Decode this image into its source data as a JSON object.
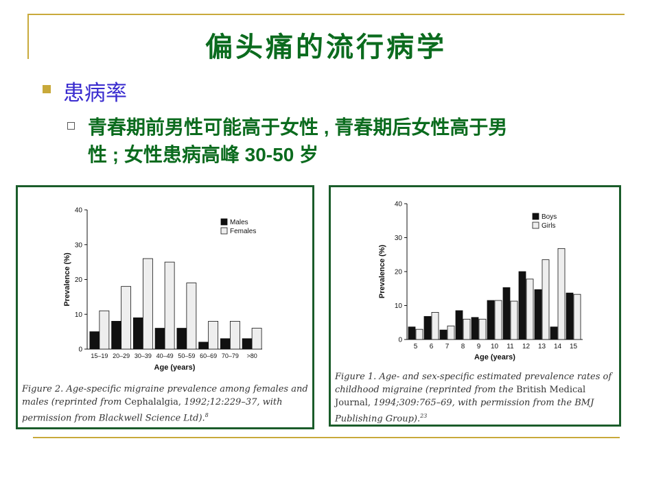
{
  "slide": {
    "title": "偏头痛的流行病学",
    "bullet1": "患病率",
    "bullet2_line1": "青春期前男性可能高于女性 , 青春期后女性高于男",
    "bullet2_line2": "性 ; 女性患病高峰 30-50 岁"
  },
  "colors": {
    "title": "#0b6b1e",
    "bullet1": "#3a2ccf",
    "rule": "#c8a93a",
    "panel_border": "#1a5c2a"
  },
  "chart_data": [
    {
      "type": "bar",
      "categories": [
        "15–19",
        "20–29",
        "30–39",
        "40–49",
        "50–59",
        "60–69",
        "70–79",
        ">80"
      ],
      "series": [
        {
          "name": "Males",
          "values": [
            5,
            8,
            9,
            6,
            6,
            2,
            3,
            3
          ],
          "color": "#111111"
        },
        {
          "name": "Females",
          "values": [
            11,
            18,
            26,
            25,
            19,
            8,
            8,
            6
          ],
          "color": "#eeeeee"
        }
      ],
      "xlabel": "Age (years)",
      "ylabel": "Prevalence (%)",
      "ylim": [
        0,
        40
      ],
      "yticks": [
        "0",
        "10",
        "20",
        "30",
        "40"
      ],
      "legend": "top-right",
      "caption_parts": [
        {
          "t": "Figure 2. Age-specific migraine prevalence among females and males (reprinted from ",
          "s": "i"
        },
        {
          "t": "Cephalalgia, ",
          "s": "n"
        },
        {
          "t": "1992;12:229–37, with permission from Blackwell Science Ltd).",
          "s": "i"
        },
        {
          "t": "8",
          "s": "sup"
        }
      ]
    },
    {
      "type": "bar",
      "categories": [
        "5",
        "6",
        "7",
        "8",
        "9",
        "10",
        "11",
        "12",
        "13",
        "14",
        "15"
      ],
      "series": [
        {
          "name": "Boys",
          "values": [
            3.7,
            6.8,
            2.8,
            8.5,
            6.5,
            11.5,
            15.3,
            20,
            14.7,
            3.7,
            13.7
          ],
          "color": "#111111"
        },
        {
          "name": "Girls",
          "values": [
            3,
            8,
            4,
            6,
            6,
            11.5,
            11.3,
            17.8,
            23.5,
            26.8,
            13.3
          ],
          "color": "#eeeeee"
        }
      ],
      "xlabel": "Age (years)",
      "ylabel": "Prevalence (%)",
      "ylim": [
        0,
        40
      ],
      "yticks": [
        "0",
        "10",
        "20",
        "30",
        "40"
      ],
      "legend": "top-right",
      "caption_parts": [
        {
          "t": "Figure 1. Age- and sex-specific estimated prevalence rates of childhood migraine (reprinted from the ",
          "s": "i"
        },
        {
          "t": "British Medical Journal, ",
          "s": "n"
        },
        {
          "t": "1994;309:765–69, with permission from the BMJ Publishing Group).",
          "s": "i"
        },
        {
          "t": "23",
          "s": "sup"
        }
      ]
    }
  ]
}
